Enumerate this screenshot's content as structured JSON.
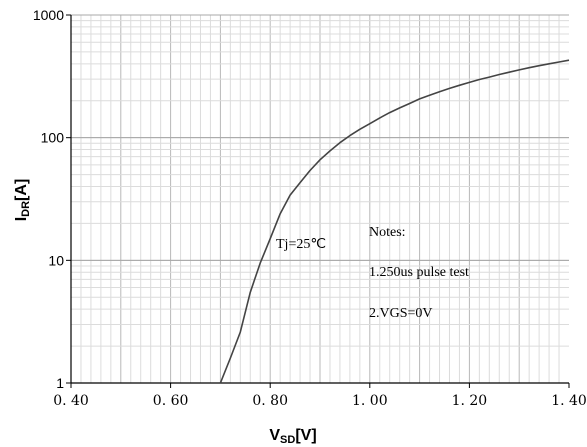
{
  "chart_data": {
    "type": "line",
    "title": "",
    "x_axis": {
      "label_main": "V",
      "label_sub": "SD",
      "label_unit": "[V]",
      "range": [
        0.4,
        1.4
      ],
      "tick_values": [
        0.4,
        0.6,
        0.8,
        1.0,
        1.2,
        1.4
      ],
      "tick_labels": [
        "0. 40",
        "0. 60",
        "0. 80",
        "1. 00",
        "1. 20",
        "1. 40"
      ],
      "minor_step": 0.02,
      "major_step": 0.1
    },
    "y_axis": {
      "label_main": "I",
      "label_sub": "DR",
      "label_unit": "[A]",
      "scale": "log",
      "range": [
        1,
        1000
      ],
      "tick_values": [
        1,
        10,
        100,
        1000
      ],
      "tick_labels": [
        "1",
        "10",
        "100",
        "1000"
      ]
    },
    "grid": true,
    "series": [
      {
        "name": "",
        "color": "#444444",
        "x": [
          0.7,
          0.72,
          0.74,
          0.76,
          0.78,
          0.8,
          0.82,
          0.84,
          0.86,
          0.88,
          0.9,
          0.92,
          0.94,
          0.96,
          0.98,
          1.0,
          1.02,
          1.04,
          1.06,
          1.08,
          1.1,
          1.12,
          1.14,
          1.16,
          1.18,
          1.2,
          1.22,
          1.24,
          1.26,
          1.28,
          1.3,
          1.32,
          1.34,
          1.36,
          1.38,
          1.4
        ],
        "y": [
          1.0,
          1.6,
          2.6,
          5.5,
          9.5,
          15,
          24,
          34,
          43,
          54,
          66,
          78,
          91,
          104,
          117,
          130,
          145,
          160,
          175,
          190,
          207,
          222,
          237,
          252,
          267,
          282,
          298,
          312,
          327,
          342,
          357,
          372,
          386,
          400,
          414,
          428
        ]
      }
    ],
    "annotations": {
      "curve_label": "Tj=25℃",
      "notes_title": "Notes:",
      "note_1": "1.250us pulse test",
      "note_2": "2.VGS=0V"
    }
  }
}
